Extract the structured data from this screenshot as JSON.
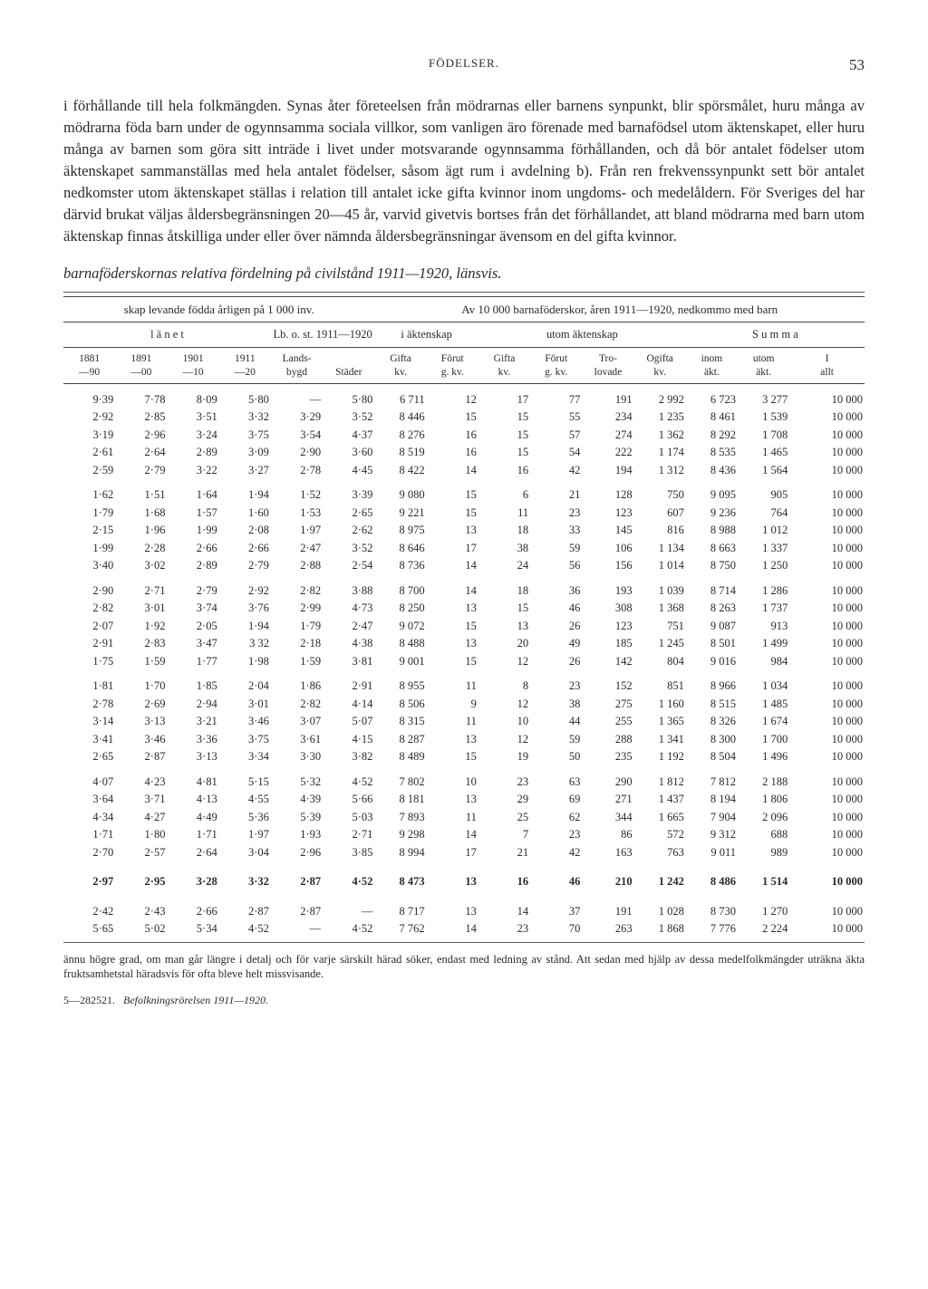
{
  "page_number": "53",
  "running_head": "FÖDELSER.",
  "body_text": "i förhållande till hela folkmängden. Synas åter företeelsen från mödrarnas eller barnens synpunkt, blir spörsmålet, huru många av mödrarna föda barn under de ogynnsamma sociala villkor, som vanligen äro förenade med barnafödsel utom äktenskapet, eller huru många av barnen som göra sitt inträde i livet under motsvarande ogynnsamma förhållanden, och då bör antalet födelser utom äktenskapet sammanställas med hela antalet födelser, såsom ägt rum i avdelning b). Från ren frekvenssynpunkt sett bör antalet nedkomster utom äktenskapet ställas i relation till antalet icke gifta kvinnor inom ungdoms- och medelåldern. För Sveriges del har därvid brukat väljas åldersbegränsningen 20—45 år, varvid givetvis bortses från det förhållandet, att bland mödrarna med barn utom äktenskap finnas åtskilliga under eller över nämnda åldersbegränsningar ävensom en del gifta kvinnor.",
  "subtitle": "barnaföderskornas relativa fördelning på civilstånd 1911—1920, länsvis.",
  "header_left": "skap levande födda årligen på 1 000 inv.",
  "header_right": "Av 10 000 barnaföderskor, åren 1911—1920, nedkommo med barn",
  "mid": {
    "lanet": "l ä n e t",
    "lb": "Lb. o. st. 1911—1920",
    "iakt": "i äktenskap",
    "utom": "utom äktenskap",
    "summa": "S u m m a"
  },
  "cols": [
    "1881 —90",
    "1891 —00",
    "1901 —10",
    "1911 —20",
    "Lands- bygd",
    "Städer",
    "Gifta kv.",
    "Förut g. kv.",
    "Gifta kv.",
    "Förut g. kv.",
    "Tro- lovade",
    "Ogifta kv.",
    "inom äkt.",
    "utom äkt.",
    "I allt"
  ],
  "groups": [
    [
      [
        "9·39",
        "7·78",
        "8·09",
        "5·80",
        "—",
        "5·80",
        "6 711",
        "12",
        "17",
        "77",
        "191",
        "2 992",
        "6 723",
        "3 277",
        "10 000"
      ],
      [
        "2·92",
        "2·85",
        "3·51",
        "3·32",
        "3·29",
        "3·52",
        "8 446",
        "15",
        "15",
        "55",
        "234",
        "1 235",
        "8 461",
        "1 539",
        "10 000"
      ],
      [
        "3·19",
        "2·96",
        "3·24",
        "3·75",
        "3·54",
        "4·37",
        "8 276",
        "16",
        "15",
        "57",
        "274",
        "1 362",
        "8 292",
        "1 708",
        "10 000"
      ],
      [
        "2·61",
        "2·64",
        "2·89",
        "3·09",
        "2·90",
        "3·60",
        "8 519",
        "16",
        "15",
        "54",
        "222",
        "1 174",
        "8 535",
        "1 465",
        "10 000"
      ],
      [
        "2·59",
        "2·79",
        "3·22",
        "3·27",
        "2·78",
        "4·45",
        "8 422",
        "14",
        "16",
        "42",
        "194",
        "1 312",
        "8 436",
        "1 564",
        "10 000"
      ]
    ],
    [
      [
        "1·62",
        "1·51",
        "1·64",
        "1·94",
        "1·52",
        "3·39",
        "9 080",
        "15",
        "6",
        "21",
        "128",
        "750",
        "9 095",
        "905",
        "10 000"
      ],
      [
        "1·79",
        "1·68",
        "1·57",
        "1·60",
        "1·53",
        "2·65",
        "9 221",
        "15",
        "11",
        "23",
        "123",
        "607",
        "9 236",
        "764",
        "10 000"
      ],
      [
        "2·15",
        "1·96",
        "1·99",
        "2·08",
        "1·97",
        "2·62",
        "8 975",
        "13",
        "18",
        "33",
        "145",
        "816",
        "8 988",
        "1 012",
        "10 000"
      ],
      [
        "1·99",
        "2·28",
        "2·66",
        "2·66",
        "2·47",
        "3·52",
        "8 646",
        "17",
        "38",
        "59",
        "106",
        "1 134",
        "8 663",
        "1 337",
        "10 000"
      ],
      [
        "3·40",
        "3·02",
        "2·89",
        "2·79",
        "2·88",
        "2·54",
        "8 736",
        "14",
        "24",
        "56",
        "156",
        "1 014",
        "8 750",
        "1 250",
        "10 000"
      ]
    ],
    [
      [
        "2·90",
        "2·71",
        "2·79",
        "2·92",
        "2·82",
        "3·88",
        "8 700",
        "14",
        "18",
        "36",
        "193",
        "1 039",
        "8 714",
        "1 286",
        "10 000"
      ],
      [
        "2·82",
        "3·01",
        "3·74",
        "3·76",
        "2·99",
        "4·73",
        "8 250",
        "13",
        "15",
        "46",
        "308",
        "1 368",
        "8 263",
        "1 737",
        "10 000"
      ],
      [
        "2·07",
        "1·92",
        "2·05",
        "1·94",
        "1·79",
        "2·47",
        "9 072",
        "15",
        "13",
        "26",
        "123",
        "751",
        "9 087",
        "913",
        "10 000"
      ],
      [
        "2·91",
        "2·83",
        "3·47",
        "3 32",
        "2·18",
        "4·38",
        "8 488",
        "13",
        "20",
        "49",
        "185",
        "1 245",
        "8 501",
        "1 499",
        "10 000"
      ],
      [
        "1·75",
        "1·59",
        "1·77",
        "1·98",
        "1·59",
        "3·81",
        "9 001",
        "15",
        "12",
        "26",
        "142",
        "804",
        "9 016",
        "984",
        "10 000"
      ]
    ],
    [
      [
        "1·81",
        "1·70",
        "1·85",
        "2·04",
        "1·86",
        "2·91",
        "8 955",
        "11",
        "8",
        "23",
        "152",
        "851",
        "8 966",
        "1 034",
        "10 000"
      ],
      [
        "2·78",
        "2·69",
        "2·94",
        "3·01",
        "2·82",
        "4·14",
        "8 506",
        "9",
        "12",
        "38",
        "275",
        "1 160",
        "8 515",
        "1 485",
        "10 000"
      ],
      [
        "3·14",
        "3·13",
        "3·21",
        "3·46",
        "3·07",
        "5·07",
        "8 315",
        "11",
        "10",
        "44",
        "255",
        "1 365",
        "8 326",
        "1 674",
        "10 000"
      ],
      [
        "3·41",
        "3·46",
        "3·36",
        "3·75",
        "3·61",
        "4·15",
        "8 287",
        "13",
        "12",
        "59",
        "288",
        "1 341",
        "8 300",
        "1 700",
        "10 000"
      ],
      [
        "2·65",
        "2·87",
        "3·13",
        "3·34",
        "3·30",
        "3·82",
        "8 489",
        "15",
        "19",
        "50",
        "235",
        "1 192",
        "8 504",
        "1 496",
        "10 000"
      ]
    ],
    [
      [
        "4·07",
        "4·23",
        "4·81",
        "5·15",
        "5·32",
        "4·52",
        "7 802",
        "10",
        "23",
        "63",
        "290",
        "1 812",
        "7 812",
        "2 188",
        "10 000"
      ],
      [
        "3·64",
        "3·71",
        "4·13",
        "4·55",
        "4·39",
        "5·66",
        "8 181",
        "13",
        "29",
        "69",
        "271",
        "1 437",
        "8 194",
        "1 806",
        "10 000"
      ],
      [
        "4·34",
        "4·27",
        "4·49",
        "5·36",
        "5·39",
        "5·03",
        "7 893",
        "11",
        "25",
        "62",
        "344",
        "1 665",
        "7 904",
        "2 096",
        "10 000"
      ],
      [
        "1·71",
        "1·80",
        "1·71",
        "1·97",
        "1·93",
        "2·71",
        "9 298",
        "14",
        "7",
        "23",
        "86",
        "572",
        "9 312",
        "688",
        "10 000"
      ],
      [
        "2·70",
        "2·57",
        "2·64",
        "3·04",
        "2·96",
        "3·85",
        "8 994",
        "17",
        "21",
        "42",
        "163",
        "763",
        "9 011",
        "989",
        "10 000"
      ]
    ]
  ],
  "bold_row": [
    "2·97",
    "2·95",
    "3·28",
    "3·32",
    "2·87",
    "4·52",
    "8 473",
    "13",
    "16",
    "46",
    "210",
    "1 242",
    "8 486",
    "1 514",
    "10 000"
  ],
  "tail_rows": [
    [
      "2·42",
      "2·43",
      "2·66",
      "2·87",
      "2·87",
      "—",
      "8 717",
      "13",
      "14",
      "37",
      "191",
      "1 028",
      "8 730",
      "1 270",
      "10 000"
    ],
    [
      "5·65",
      "5·02",
      "5·34",
      "4·52",
      "—",
      "4·52",
      "7 762",
      "14",
      "23",
      "70",
      "263",
      "1 868",
      "7 776",
      "2 224",
      "10 000"
    ]
  ],
  "footnote": "ännu högre grad, om man går längre i detalj och för varje särskilt härad söker, endast med ledning av stånd. Att sedan med hjälp av dessa medelfolkmängder uträkna äkta fruktsamhetstal häradsvis för ofta bleve helt missvisande.",
  "citation_num": "5—282521.",
  "citation_title": "Befolkningsrörelsen 1911—1920."
}
